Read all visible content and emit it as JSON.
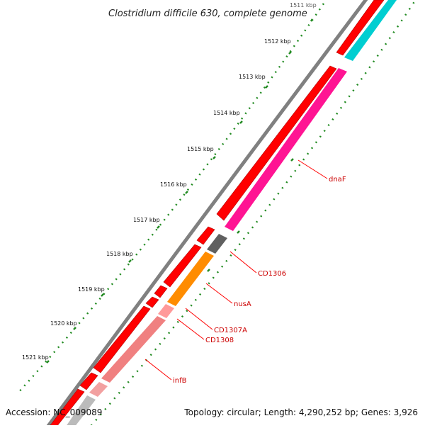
{
  "title": "Clostridium difficile 630, complete genome",
  "accession": "Accession: NC_009089",
  "summary": "Topology: circular; Length: 4,290,252 bp; Genes: 3,926",
  "ticks": [
    "1511 kbp",
    "1512 kbp",
    "1513 kbp",
    "1514 kbp",
    "1515 kbp",
    "1516 kbp",
    "1517 kbp",
    "1518 kbp",
    "1519 kbp",
    "1520 kbp",
    "1521 kbp"
  ],
  "genes": [
    {
      "label": "dnaF",
      "color": "#ff1493"
    },
    {
      "label": "CD1306",
      "color": "#606060"
    },
    {
      "label": "nusA",
      "color": "#ff8c00"
    },
    {
      "label": "CD1307A",
      "color": "#ff9999"
    },
    {
      "label": "CD1308",
      "color": "#ff9999"
    },
    {
      "label": "infB",
      "color": "#f08080"
    }
  ],
  "colors": {
    "backbone": "#808080",
    "cds_forward": "#ff0000",
    "tick": "#228b22",
    "label": "#cc0000",
    "teal": "#00ced1"
  }
}
